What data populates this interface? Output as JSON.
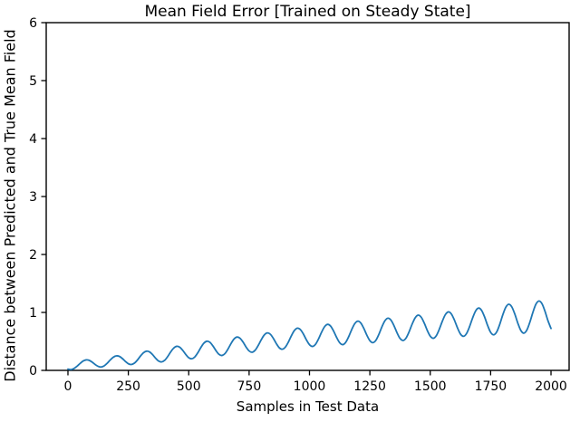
{
  "chart_data": {
    "type": "line",
    "title": "Mean Field Error [Trained on Steady State]",
    "xlabel": "Samples in Test Data",
    "ylabel": "Distance between Predicted and True Mean Field",
    "xlim": [
      -90,
      2075
    ],
    "ylim": [
      0,
      6
    ],
    "x_ticks": [
      0,
      250,
      500,
      750,
      1000,
      1250,
      1500,
      1750,
      2000
    ],
    "y_ticks": [
      0,
      1,
      2,
      3,
      4,
      5,
      6
    ],
    "grid": false,
    "legend_position": "none",
    "axis_color": "#000000",
    "background_color": "#ffffff",
    "series": [
      {
        "name": "mean field error",
        "color": "#1f77b4",
        "line_width": 1.8,
        "x_start": 0,
        "x_step": 12.5,
        "y": [
          0.022,
          0.014,
          0.032,
          0.071,
          0.119,
          0.161,
          0.181,
          0.174,
          0.143,
          0.102,
          0.069,
          0.058,
          0.078,
          0.123,
          0.179,
          0.227,
          0.25,
          0.242,
          0.205,
          0.156,
          0.115,
          0.102,
          0.125,
          0.178,
          0.246,
          0.304,
          0.331,
          0.319,
          0.273,
          0.212,
          0.162,
          0.146,
          0.172,
          0.236,
          0.316,
          0.383,
          0.415,
          0.4,
          0.347,
          0.276,
          0.219,
          0.201,
          0.231,
          0.303,
          0.393,
          0.468,
          0.503,
          0.485,
          0.423,
          0.343,
          0.278,
          0.257,
          0.29,
          0.367,
          0.462,
          0.541,
          0.575,
          0.554,
          0.488,
          0.403,
          0.336,
          0.313,
          0.347,
          0.428,
          0.526,
          0.609,
          0.646,
          0.625,
          0.555,
          0.464,
          0.39,
          0.365,
          0.401,
          0.488,
          0.597,
          0.688,
          0.728,
          0.703,
          0.625,
          0.525,
          0.443,
          0.413,
          0.45,
          0.543,
          0.658,
          0.754,
          0.794,
          0.764,
          0.677,
          0.567,
          0.477,
          0.444,
          0.484,
          0.583,
          0.706,
          0.807,
          0.85,
          0.818,
          0.724,
          0.607,
          0.513,
          0.479,
          0.52,
          0.624,
          0.752,
          0.857,
          0.9,
          0.866,
          0.77,
          0.649,
          0.551,
          0.516,
          0.559,
          0.666,
          0.798,
          0.907,
          0.953,
          0.918,
          0.818,
          0.692,
          0.591,
          0.554,
          0.598,
          0.71,
          0.848,
          0.962,
          1.009,
          0.973,
          0.868,
          0.736,
          0.628,
          0.588,
          0.634,
          0.752,
          0.9,
          1.023,
          1.075,
          1.036,
          0.922,
          0.776,
          0.657,
          0.613,
          0.663,
          0.792,
          0.954,
          1.087,
          1.141,
          1.097,
          0.973,
          0.816,
          0.689,
          0.642,
          0.696,
          0.832,
          1.001,
          1.141,
          1.197,
          1.151,
          1.02,
          0.856,
          0.723
        ]
      }
    ]
  }
}
